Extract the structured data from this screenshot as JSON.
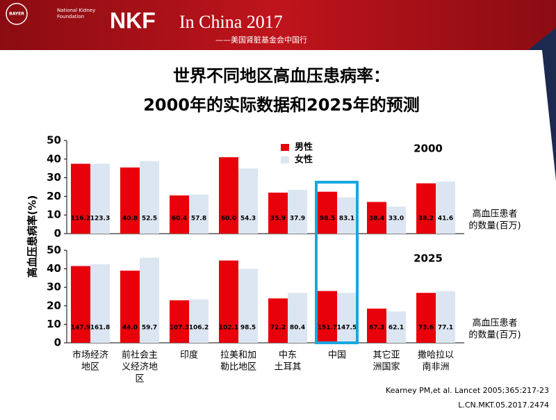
{
  "header": {
    "logo1": "BAYER",
    "logo2": [
      "National Kidney",
      "Foundation"
    ],
    "brand": "NKF",
    "event": "In China 2017",
    "subtitle": "——美国肾脏基金会中国行"
  },
  "title": [
    "世界不同地区高血压患病率：",
    "2000年的实际数据和2025年的预测"
  ],
  "y_label": "高血压患病率(%)",
  "chart_data": [
    {
      "type": "bar",
      "label": "2000",
      "ylim": [
        0,
        50
      ],
      "yticks": [
        0,
        10,
        20,
        30,
        40,
        50
      ],
      "legend": "top",
      "series": [
        {
          "name": "男性",
          "color": "#e8000b",
          "values": [
            37.5,
            35.5,
            20.5,
            41,
            22,
            22.5,
            17,
            27
          ],
          "count_labels": [
            "116.2",
            "40.8",
            "60.4",
            "60.0",
            "35.9",
            "98.5",
            "38.4",
            "38.2"
          ]
        },
        {
          "name": "女性",
          "color": "#dce6f2",
          "values": [
            37.5,
            39,
            21,
            35,
            23.5,
            19.5,
            14.5,
            28
          ],
          "count_labels": [
            "123.3",
            "52.5",
            "57.8",
            "54.3",
            "37.9",
            "83.1",
            "33.0",
            "41.6"
          ]
        }
      ],
      "count_note": [
        "高血压患者",
        "的数量(百万)"
      ]
    },
    {
      "type": "bar",
      "label": "2025",
      "ylim": [
        0,
        50
      ],
      "yticks": [
        0,
        10,
        20,
        30,
        40,
        50
      ],
      "categories": [
        [
          "市场经济",
          "地区"
        ],
        [
          "前社会主",
          "义经济地",
          "区"
        ],
        [
          "印度"
        ],
        [
          "拉美和加",
          "勒比地区"
        ],
        [
          "中东",
          "土耳其"
        ],
        [
          "中国"
        ],
        [
          "其它亚",
          "洲国家"
        ],
        [
          "撒哈拉以",
          "南非洲"
        ]
      ],
      "series": [
        {
          "color": "#e8000b",
          "values": [
            41.5,
            39,
            23,
            44.5,
            24,
            28,
            18.5,
            27
          ],
          "count_labels": [
            "147.9",
            "44.0",
            "107.3",
            "102.1",
            "72.2",
            "151.7",
            "67.3",
            "73.6"
          ]
        },
        {
          "color": "#dce6f2",
          "values": [
            42.5,
            46,
            23.5,
            40,
            27,
            27,
            17,
            28
          ],
          "count_labels": [
            "161.8",
            "59.7",
            "106.2",
            "98.5",
            "80.4",
            "147.5",
            "62.1",
            "77.1"
          ]
        }
      ],
      "count_note": [
        "高血压患者",
        "的数量(百万)"
      ]
    }
  ],
  "citation": "Kearney PM,et al. Lancet 2005;365:217-23",
  "code": "L.CN.MKT.05.2017.2474"
}
